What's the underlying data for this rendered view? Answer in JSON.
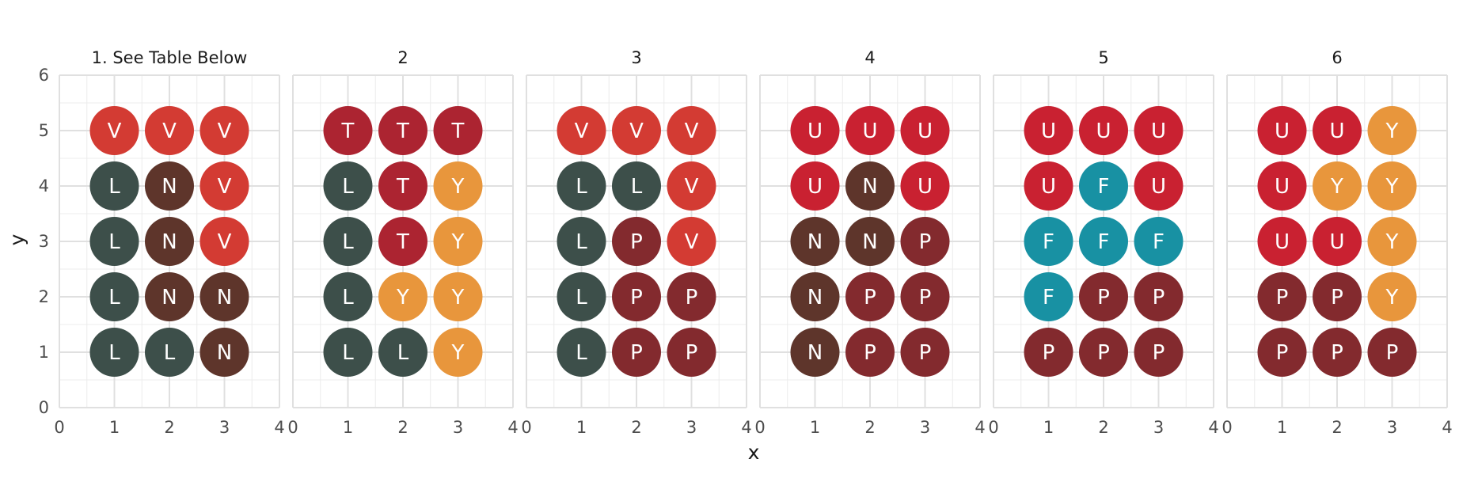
{
  "chart_data": {
    "type": "scatter",
    "subtype": "faceted dot grid with letter labels",
    "xlabel": "x",
    "ylabel": "y",
    "xlim": [
      0,
      4
    ],
    "ylim": [
      0,
      6
    ],
    "x_ticks": [
      "0",
      "1",
      "2",
      "3",
      "4"
    ],
    "y_ticks": [
      "0",
      "1",
      "2",
      "3",
      "4",
      "5",
      "6"
    ],
    "grid": true,
    "legend": "none",
    "colors": {
      "L": "#3d4f4a",
      "N": "#5e352b",
      "V": "#d33b33",
      "T": "#ac2431",
      "Y": "#e8963c",
      "P": "#832a2e",
      "U": "#c92131",
      "F": "#1891a3"
    },
    "panels": [
      {
        "title": "1. See Table Below",
        "rows": [
          [
            "V",
            "V",
            "V"
          ],
          [
            "L",
            "N",
            "V"
          ],
          [
            "L",
            "N",
            "V"
          ],
          [
            "L",
            "N",
            "N"
          ],
          [
            "L",
            "L",
            "N"
          ]
        ]
      },
      {
        "title": "2",
        "rows": [
          [
            "T",
            "T",
            "T"
          ],
          [
            "L",
            "T",
            "Y"
          ],
          [
            "L",
            "T",
            "Y"
          ],
          [
            "L",
            "Y",
            "Y"
          ],
          [
            "L",
            "L",
            "Y"
          ]
        ]
      },
      {
        "title": "3",
        "rows": [
          [
            "V",
            "V",
            "V"
          ],
          [
            "L",
            "L",
            "V"
          ],
          [
            "L",
            "P",
            "V"
          ],
          [
            "L",
            "P",
            "P"
          ],
          [
            "L",
            "P",
            "P"
          ]
        ]
      },
      {
        "title": "4",
        "rows": [
          [
            "U",
            "U",
            "U"
          ],
          [
            "U",
            "N",
            "U"
          ],
          [
            "N",
            "N",
            "P"
          ],
          [
            "N",
            "P",
            "P"
          ],
          [
            "N",
            "P",
            "P"
          ]
        ]
      },
      {
        "title": "5",
        "rows": [
          [
            "U",
            "U",
            "U"
          ],
          [
            "U",
            "F",
            "U"
          ],
          [
            "F",
            "F",
            "F"
          ],
          [
            "F",
            "P",
            "P"
          ],
          [
            "P",
            "P",
            "P"
          ]
        ]
      },
      {
        "title": "6",
        "rows": [
          [
            "U",
            "U",
            "Y"
          ],
          [
            "U",
            "Y",
            "Y"
          ],
          [
            "U",
            "U",
            "Y"
          ],
          [
            "P",
            "P",
            "Y"
          ],
          [
            "P",
            "P",
            "P"
          ]
        ]
      }
    ],
    "row_y_values": [
      5,
      4,
      3,
      2,
      1
    ],
    "col_x_values": [
      1,
      2,
      3
    ]
  }
}
